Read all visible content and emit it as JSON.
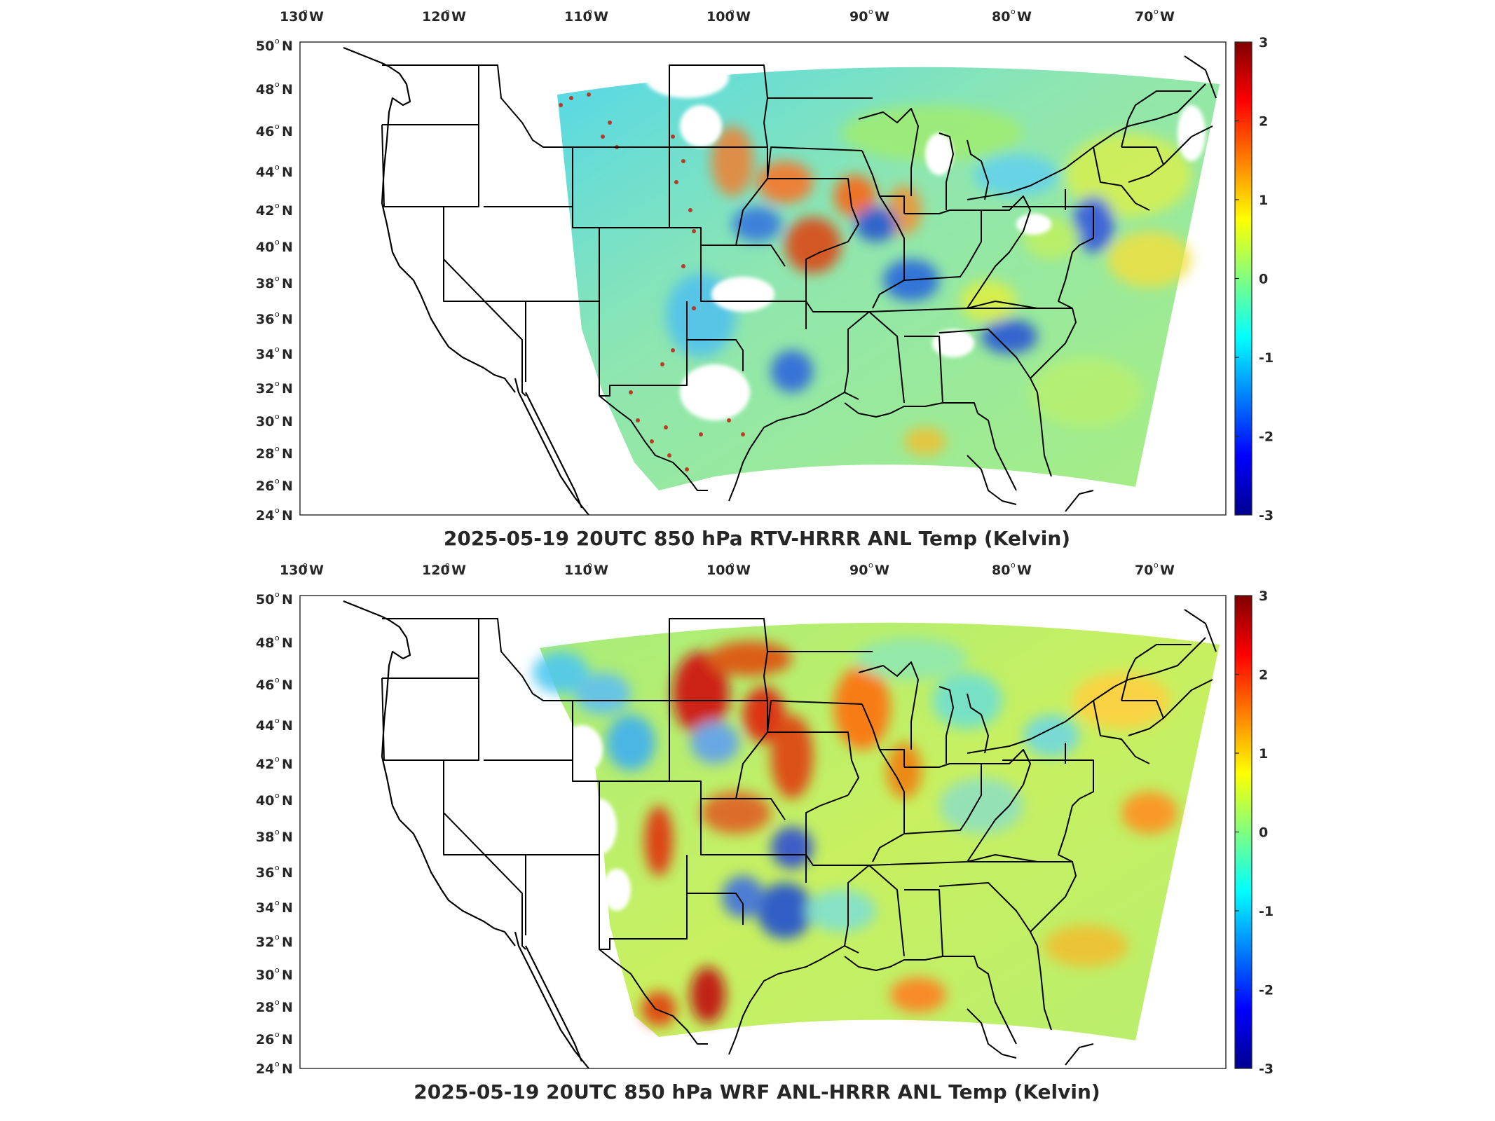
{
  "figure": {
    "colormap": "jet",
    "lon_ticks": [
      "130",
      "120",
      "110",
      "100",
      "90",
      "80",
      "70"
    ],
    "lon_hemisphere": "W",
    "lat_ticks": [
      "50",
      "48",
      "46",
      "44",
      "42",
      "40",
      "38",
      "36",
      "34",
      "32",
      "30",
      "28",
      "26",
      "24"
    ],
    "lat_hemisphere": "N",
    "degree_symbol": "o",
    "colorbar_ticks": [
      "3",
      "2",
      "1",
      "0",
      "-1",
      "-2",
      "-3"
    ],
    "colorbar_range": [
      -3,
      3
    ],
    "colorbar_colors": [
      "#7f0000",
      "#ff0000",
      "#ffff00",
      "#00ffff",
      "#0000ff",
      "#00008f"
    ]
  },
  "panels": [
    {
      "id": "top",
      "title": "2025-05-19 20UTC 850 hPa RTV-HRRR ANL Temp (Kelvin)"
    },
    {
      "id": "bottom",
      "title": "2025-05-19 20UTC 850 hPa WRF ANL-HRRR ANL Temp (Kelvin)"
    }
  ]
}
